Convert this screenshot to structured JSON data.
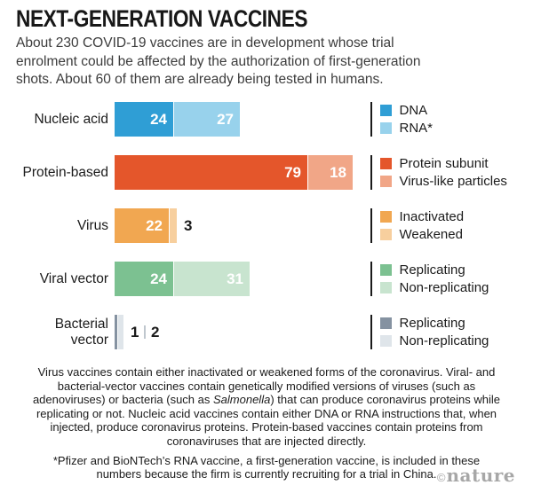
{
  "header": {
    "title": "NEXT-GENERATION VACCINES",
    "subtitle_lines": [
      "About 230 COVID-19 vaccines are in development whose trial",
      "enrolment could be affected by the authorization of first-generation",
      "shots. About 60 of them are already being tested in humans."
    ]
  },
  "chart_data": {
    "type": "bar",
    "orientation": "horizontal-stacked",
    "unit": "number of vaccines",
    "rows": [
      {
        "category_lines": [
          "Nucleic acid"
        ],
        "segments": [
          {
            "label": "DNA",
            "value": 24,
            "color": "#2f9ed5",
            "value_inside": true
          },
          {
            "label": "RNA*",
            "value": 27,
            "color": "#98d2ec",
            "value_inside": true
          }
        ]
      },
      {
        "category_lines": [
          "Protein-based"
        ],
        "segments": [
          {
            "label": "Protein subunit",
            "value": 79,
            "color": "#e4562b",
            "value_inside": true
          },
          {
            "label": "Virus-like particles",
            "value": 18,
            "color": "#f1a687",
            "value_inside": true
          }
        ]
      },
      {
        "category_lines": [
          "Virus"
        ],
        "segments": [
          {
            "label": "Inactivated",
            "value": 22,
            "color": "#f1a751",
            "value_inside": true
          },
          {
            "label": "Weakened",
            "value": 3,
            "color": "#f7cf9e",
            "value_inside": false
          }
        ]
      },
      {
        "category_lines": [
          "Viral vector"
        ],
        "segments": [
          {
            "label": "Replicating",
            "value": 24,
            "color": "#7cc191",
            "value_inside": true
          },
          {
            "label": "Non-replicating",
            "value": 31,
            "color": "#c8e4cf",
            "value_inside": true
          }
        ]
      },
      {
        "category_lines": [
          "Bacterial",
          "vector"
        ],
        "segments": [
          {
            "label": "Replicating",
            "value": 1,
            "color": "#8592a1",
            "value_inside": false
          },
          {
            "label": "Non-replicating",
            "value": 2,
            "color": "#dfe5ea",
            "value_inside": false
          }
        ]
      }
    ]
  },
  "footnote": {
    "p1a": "Virus vaccines contain either inactivated or weakened forms of the coronavirus. Viral- and bacterial-vector vaccines contain genetically modified versions of viruses (such as adenoviruses) or bacteria (such as ",
    "salmonella": "Salmonella",
    "p1b": ") that can produce coronavirus proteins while replicating or not. Nucleic acid vaccines contain either DNA or RNA instructions that, when injected, produce coronavirus proteins. Protein-based vaccines contain proteins from coronaviruses that are injected directly.",
    "p2": "*Pfizer and BioNTech’s RNA vaccine, a first-generation vaccine, is included in these numbers because the firm is currently recruiting for a trial in China."
  },
  "credit": {
    "copyright": "©",
    "brand": "nature"
  }
}
